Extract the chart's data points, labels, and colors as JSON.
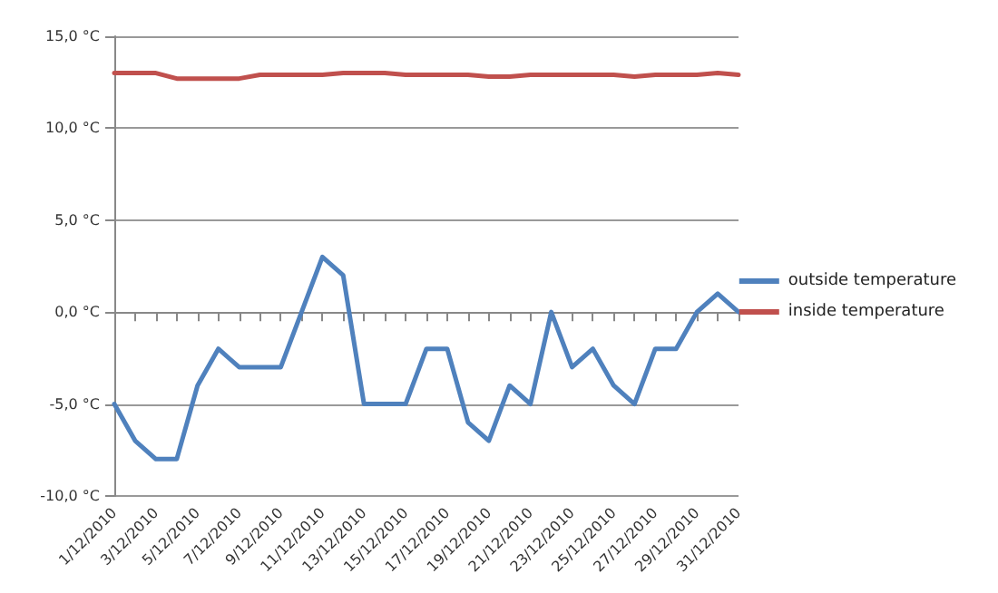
{
  "chart_data": {
    "type": "line",
    "categories": [
      "1/12/2010",
      null,
      "3/12/2010",
      null,
      "5/12/2010",
      null,
      "7/12/2010",
      null,
      "9/12/2010",
      null,
      "11/12/2010",
      null,
      "13/12/2010",
      null,
      "15/12/2010",
      null,
      "17/12/2010",
      null,
      "19/12/2010",
      null,
      "21/12/2010",
      null,
      "23/12/2010",
      null,
      "25/12/2010",
      null,
      "27/12/2010",
      null,
      "29/12/2010",
      null,
      "31/12/2010"
    ],
    "series": [
      {
        "name": "outside temperature",
        "color": "#4f81bd",
        "values": [
          -5,
          -7,
          -8,
          -8,
          -4,
          -2,
          -3,
          -3,
          -3,
          0,
          3,
          2,
          -5,
          -5,
          -5,
          -2,
          -2,
          -6,
          -7,
          -4,
          -5,
          0,
          -3,
          -2,
          -4,
          -5,
          -2,
          -2,
          0,
          1,
          0
        ]
      },
      {
        "name": "inside temperature",
        "color": "#c0504d",
        "values": [
          13,
          13,
          13,
          12.7,
          12.7,
          12.7,
          12.7,
          12.9,
          12.9,
          12.9,
          12.9,
          13,
          13,
          13,
          12.9,
          12.9,
          12.9,
          12.9,
          12.8,
          12.8,
          12.9,
          12.9,
          12.9,
          12.9,
          12.9,
          12.8,
          12.9,
          12.9,
          12.9,
          13,
          12.9
        ]
      }
    ],
    "ylim": [
      -10,
      15
    ],
    "yticks": [
      {
        "value": -10,
        "label": "-10,0 °C"
      },
      {
        "value": -5,
        "label": "-5,0 °C"
      },
      {
        "value": 0,
        "label": "0,0 °C"
      },
      {
        "value": 5,
        "label": "5,0 °C"
      },
      {
        "value": 10,
        "label": "10,0 °C"
      },
      {
        "value": 15,
        "label": "15,0 °C"
      }
    ],
    "grid": "y",
    "legend": "right",
    "marker": "none",
    "line_style": "solid"
  }
}
